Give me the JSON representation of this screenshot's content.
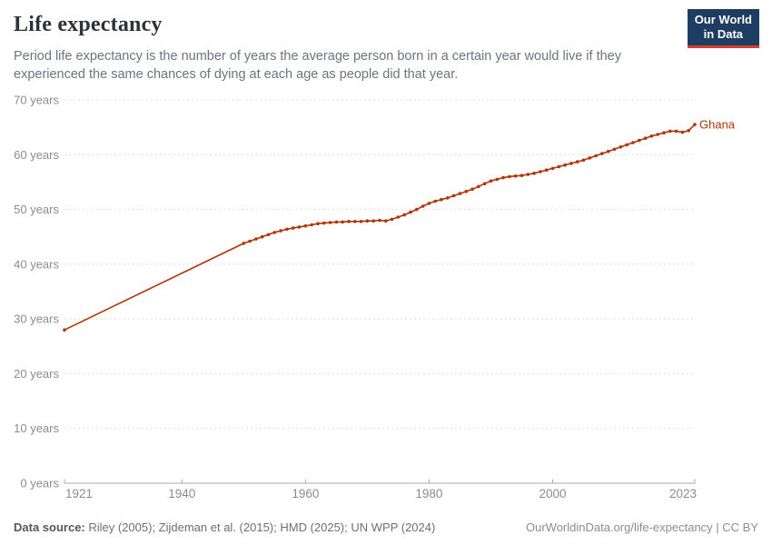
{
  "header": {
    "title": "Life expectancy",
    "subtitle": "Period life expectancy is the number of years the average person born in a certain year would live if they experienced the same chances of dying at each age as people did that year.",
    "logo": {
      "line1": "Our World",
      "line2": "in Data"
    }
  },
  "chart_data": {
    "type": "line",
    "title": "Life expectancy",
    "entity": "Ghana",
    "unit": "years",
    "color": "#b13507",
    "grid": "dashed-horizontal",
    "legend_position": "end-of-line-label",
    "xlim": [
      1921,
      2023
    ],
    "ylim": [
      0,
      70
    ],
    "x_ticks": [
      1921,
      1940,
      1960,
      1980,
      2000,
      2023
    ],
    "y_ticks": [
      0,
      10,
      20,
      30,
      40,
      50,
      60,
      70
    ],
    "y_tick_suffix": " years",
    "marker_start_year": 1950,
    "points": [
      [
        1921,
        28.0
      ],
      [
        1950,
        43.8
      ],
      [
        1951,
        44.2
      ],
      [
        1952,
        44.6
      ],
      [
        1953,
        45.0
      ],
      [
        1954,
        45.4
      ],
      [
        1955,
        45.8
      ],
      [
        1956,
        46.1
      ],
      [
        1957,
        46.4
      ],
      [
        1958,
        46.6
      ],
      [
        1959,
        46.8
      ],
      [
        1960,
        47.0
      ],
      [
        1961,
        47.2
      ],
      [
        1962,
        47.4
      ],
      [
        1963,
        47.5
      ],
      [
        1964,
        47.6
      ],
      [
        1965,
        47.7
      ],
      [
        1966,
        47.7
      ],
      [
        1967,
        47.8
      ],
      [
        1968,
        47.8
      ],
      [
        1969,
        47.8
      ],
      [
        1970,
        47.9
      ],
      [
        1971,
        47.9
      ],
      [
        1972,
        48.0
      ],
      [
        1973,
        47.9
      ],
      [
        1974,
        48.2
      ],
      [
        1975,
        48.6
      ],
      [
        1976,
        49.0
      ],
      [
        1977,
        49.5
      ],
      [
        1978,
        50.0
      ],
      [
        1979,
        50.6
      ],
      [
        1980,
        51.1
      ],
      [
        1981,
        51.5
      ],
      [
        1982,
        51.8
      ],
      [
        1983,
        52.1
      ],
      [
        1984,
        52.5
      ],
      [
        1985,
        52.9
      ],
      [
        1986,
        53.3
      ],
      [
        1987,
        53.7
      ],
      [
        1988,
        54.2
      ],
      [
        1989,
        54.7
      ],
      [
        1990,
        55.2
      ],
      [
        1991,
        55.5
      ],
      [
        1992,
        55.8
      ],
      [
        1993,
        56.0
      ],
      [
        1994,
        56.1
      ],
      [
        1995,
        56.2
      ],
      [
        1996,
        56.4
      ],
      [
        1997,
        56.6
      ],
      [
        1998,
        56.9
      ],
      [
        1999,
        57.2
      ],
      [
        2000,
        57.5
      ],
      [
        2001,
        57.8
      ],
      [
        2002,
        58.1
      ],
      [
        2003,
        58.4
      ],
      [
        2004,
        58.7
      ],
      [
        2005,
        59.0
      ],
      [
        2006,
        59.4
      ],
      [
        2007,
        59.8
      ],
      [
        2008,
        60.2
      ],
      [
        2009,
        60.6
      ],
      [
        2010,
        61.0
      ],
      [
        2011,
        61.4
      ],
      [
        2012,
        61.8
      ],
      [
        2013,
        62.2
      ],
      [
        2014,
        62.6
      ],
      [
        2015,
        63.0
      ],
      [
        2016,
        63.4
      ],
      [
        2017,
        63.7
      ],
      [
        2018,
        64.0
      ],
      [
        2019,
        64.3
      ],
      [
        2020,
        64.3
      ],
      [
        2021,
        64.1
      ],
      [
        2022,
        64.4
      ],
      [
        2023,
        65.5
      ]
    ]
  },
  "footer": {
    "source_label": "Data source:",
    "source_text": " Riley (2005); Zijdeman et al. (2015); HMD (2025); UN WPP (2024)",
    "license_text": "OurWorldinData.org/life-expectancy | CC BY"
  }
}
